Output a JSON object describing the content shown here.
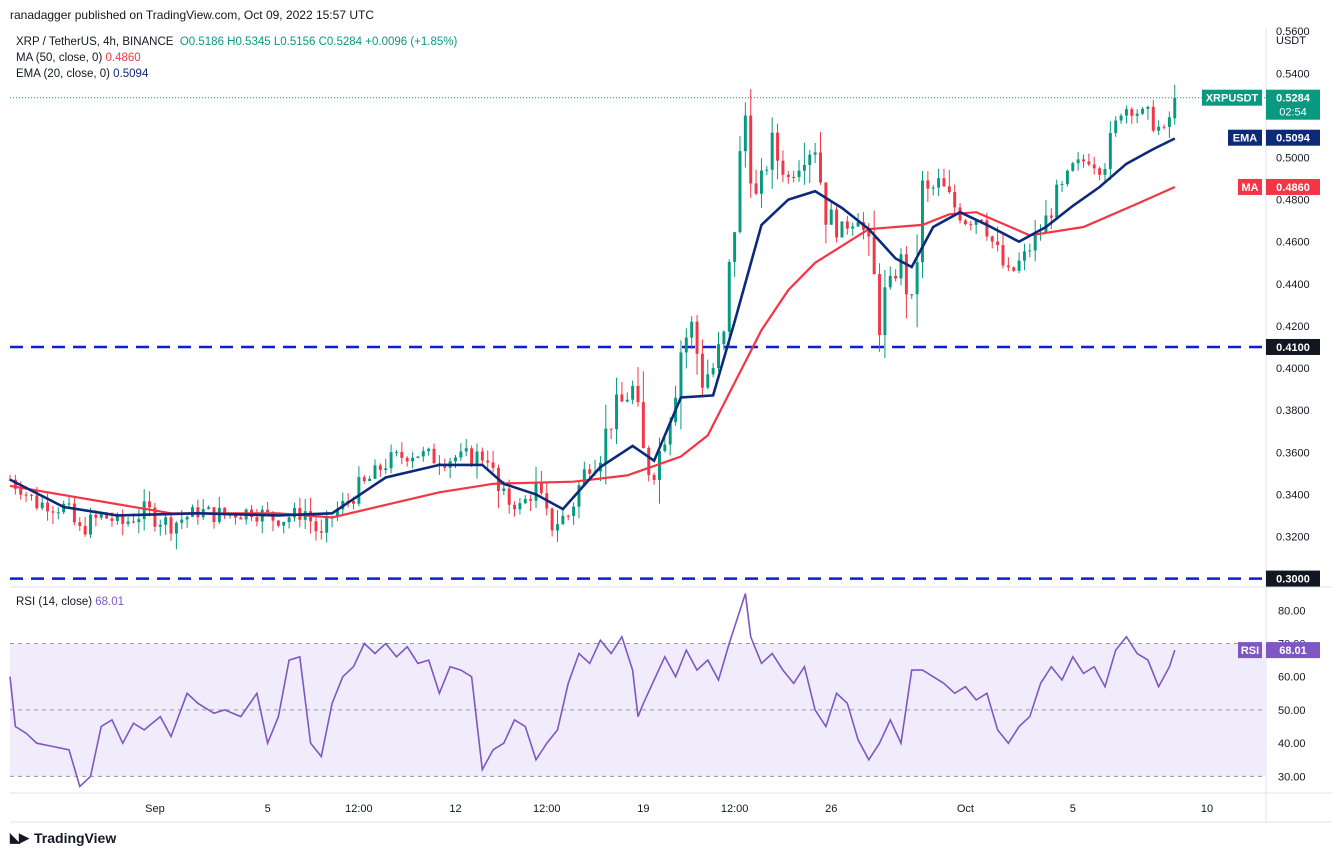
{
  "publisher": "ranadagger published on TradingView.com, Oct 09, 2022 15:57 UTC",
  "legend": {
    "symbol": "XRP / TetherUS, 4h, BINANCE",
    "ohlc": "O0.5186 H0.5345 L0.5156 C0.5284 +0.0096 (+1.85%)",
    "ma_label": "MA (50, close, 0)",
    "ma_value": "0.4860",
    "ema_label": "EMA (20, close, 0)",
    "ema_value": "0.5094",
    "rsi_label": "RSI (14, close)",
    "rsi_value": "68.01"
  },
  "brand": "TradingView",
  "colors": {
    "up": "#089981",
    "down": "#f23645",
    "ma": "#f23645",
    "ema": "#0d2a7a",
    "rsi": "#7e57c2",
    "level": "#0c1fcf",
    "rsiband": "#f1ecfb"
  },
  "chart_data": {
    "type": "candlestick",
    "title": "XRP / TetherUS, 4h, BINANCE",
    "currency": "USDT",
    "price_ylim": [
      0.296,
      0.5615
    ],
    "price_ticks": [
      "0.3200",
      "0.3400",
      "0.3600",
      "0.3800",
      "0.4000",
      "0.4200",
      "0.4400",
      "0.4600",
      "0.4800",
      "0.5000",
      "0.5400",
      "0.5600"
    ],
    "x_range": [
      0,
      234
    ],
    "x_ticks": [
      {
        "label": "Sep",
        "x": 27
      },
      {
        "label": "5",
        "x": 48
      },
      {
        "label": "12:00",
        "x": 65
      },
      {
        "label": "12",
        "x": 83
      },
      {
        "label": "12:00",
        "x": 100
      },
      {
        "label": "19",
        "x": 118
      },
      {
        "label": "12:00",
        "x": 135
      },
      {
        "label": "26",
        "x": 153
      },
      {
        "label": "Oct",
        "x": 178
      },
      {
        "label": "5",
        "x": 198
      },
      {
        "label": "10",
        "x": 223
      }
    ],
    "horizontal_levels": [
      0.41,
      0.3
    ],
    "level_labels": [
      "0.4100",
      "0.3000"
    ],
    "price_tags": {
      "symbol": "XRPUSDT",
      "price": "0.5284",
      "countdown": "02:54",
      "ema_name": "EMA",
      "ema": "0.5094",
      "ma_name": "MA",
      "ma": "0.4860"
    },
    "anchors": [
      [
        0,
        0.347
      ],
      [
        5,
        0.336
      ],
      [
        10,
        0.334
      ],
      [
        13,
        0.322
      ],
      [
        17,
        0.33
      ],
      [
        21,
        0.326
      ],
      [
        25,
        0.332
      ],
      [
        30,
        0.326
      ],
      [
        35,
        0.332
      ],
      [
        40,
        0.33
      ],
      [
        45,
        0.332
      ],
      [
        50,
        0.328
      ],
      [
        55,
        0.332
      ],
      [
        58,
        0.319
      ],
      [
        60,
        0.33
      ],
      [
        65,
        0.342
      ],
      [
        70,
        0.355
      ],
      [
        75,
        0.36
      ],
      [
        80,
        0.357
      ],
      [
        85,
        0.358
      ],
      [
        89,
        0.358
      ],
      [
        91,
        0.34
      ],
      [
        95,
        0.334
      ],
      [
        98,
        0.343
      ],
      [
        100,
        0.325
      ],
      [
        104,
        0.33
      ],
      [
        107,
        0.35
      ],
      [
        110,
        0.362
      ],
      [
        113,
        0.38
      ],
      [
        116,
        0.39
      ],
      [
        118,
        0.356
      ],
      [
        120,
        0.35
      ],
      [
        122,
        0.37
      ],
      [
        125,
        0.41
      ],
      [
        127,
        0.42
      ],
      [
        129,
        0.395
      ],
      [
        131,
        0.4
      ],
      [
        133,
        0.415
      ],
      [
        135,
        0.47
      ],
      [
        137,
        0.52
      ],
      [
        139,
        0.48
      ],
      [
        142,
        0.505
      ],
      [
        145,
        0.49
      ],
      [
        148,
        0.505
      ],
      [
        150,
        0.505
      ],
      [
        152,
        0.475
      ],
      [
        155,
        0.465
      ],
      [
        158,
        0.475
      ],
      [
        160,
        0.455
      ],
      [
        162,
        0.425
      ],
      [
        164,
        0.44
      ],
      [
        166,
        0.45
      ],
      [
        168,
        0.43
      ],
      [
        170,
        0.48
      ],
      [
        173,
        0.488
      ],
      [
        175,
        0.48
      ],
      [
        178,
        0.47
      ],
      [
        181,
        0.473
      ],
      [
        183,
        0.46
      ],
      [
        186,
        0.443
      ],
      [
        189,
        0.453
      ],
      [
        192,
        0.465
      ],
      [
        195,
        0.48
      ],
      [
        198,
        0.495
      ],
      [
        201,
        0.5
      ],
      [
        203,
        0.495
      ],
      [
        205,
        0.505
      ],
      [
        207,
        0.525
      ],
      [
        210,
        0.522
      ],
      [
        213,
        0.518
      ],
      [
        215,
        0.51
      ],
      [
        217,
        0.528
      ]
    ],
    "ma_line": [
      [
        0,
        0.344
      ],
      [
        30,
        0.331
      ],
      [
        50,
        0.331
      ],
      [
        60,
        0.329
      ],
      [
        80,
        0.341
      ],
      [
        90,
        0.345
      ],
      [
        105,
        0.346
      ],
      [
        115,
        0.349
      ],
      [
        125,
        0.358
      ],
      [
        130,
        0.368
      ],
      [
        135,
        0.393
      ],
      [
        140,
        0.418
      ],
      [
        145,
        0.437
      ],
      [
        150,
        0.45
      ],
      [
        160,
        0.466
      ],
      [
        170,
        0.468
      ],
      [
        175,
        0.473
      ],
      [
        180,
        0.474
      ],
      [
        190,
        0.463
      ],
      [
        200,
        0.467
      ],
      [
        210,
        0.478
      ],
      [
        217,
        0.486
      ]
    ],
    "ema_line": [
      [
        0,
        0.347
      ],
      [
        10,
        0.334
      ],
      [
        20,
        0.33
      ],
      [
        35,
        0.331
      ],
      [
        50,
        0.33
      ],
      [
        60,
        0.331
      ],
      [
        70,
        0.348
      ],
      [
        80,
        0.354
      ],
      [
        88,
        0.354
      ],
      [
        92,
        0.345
      ],
      [
        98,
        0.34
      ],
      [
        103,
        0.333
      ],
      [
        110,
        0.353
      ],
      [
        116,
        0.363
      ],
      [
        120,
        0.356
      ],
      [
        125,
        0.386
      ],
      [
        131,
        0.387
      ],
      [
        135,
        0.422
      ],
      [
        140,
        0.468
      ],
      [
        145,
        0.48
      ],
      [
        150,
        0.484
      ],
      [
        155,
        0.476
      ],
      [
        160,
        0.466
      ],
      [
        165,
        0.452
      ],
      [
        168,
        0.448
      ],
      [
        172,
        0.467
      ],
      [
        177,
        0.474
      ],
      [
        182,
        0.468
      ],
      [
        188,
        0.46
      ],
      [
        193,
        0.467
      ],
      [
        198,
        0.477
      ],
      [
        203,
        0.486
      ],
      [
        208,
        0.497
      ],
      [
        213,
        0.504
      ],
      [
        217,
        0.509
      ]
    ],
    "rsi": {
      "ylim": [
        25,
        87
      ],
      "ticks": [
        "30.00",
        "40.00",
        "50.00",
        "60.00",
        "70.00",
        "80.00"
      ],
      "band": [
        30,
        70
      ],
      "mid": 50,
      "anchors": [
        [
          0,
          60
        ],
        [
          1,
          45
        ],
        [
          3,
          43
        ],
        [
          5,
          40
        ],
        [
          8,
          39
        ],
        [
          11,
          38
        ],
        [
          13,
          27
        ],
        [
          15,
          30
        ],
        [
          17,
          45
        ],
        [
          19,
          47
        ],
        [
          21,
          40
        ],
        [
          23,
          46
        ],
        [
          25,
          44
        ],
        [
          28,
          48
        ],
        [
          30,
          42
        ],
        [
          33,
          55
        ],
        [
          35,
          52
        ],
        [
          38,
          49
        ],
        [
          40,
          50
        ],
        [
          43,
          48
        ],
        [
          46,
          55
        ],
        [
          48,
          40
        ],
        [
          50,
          48
        ],
        [
          52,
          65
        ],
        [
          54,
          66
        ],
        [
          56,
          40
        ],
        [
          58,
          36
        ],
        [
          60,
          52
        ],
        [
          62,
          60
        ],
        [
          64,
          63
        ],
        [
          66,
          70
        ],
        [
          68,
          67
        ],
        [
          70,
          70
        ],
        [
          72,
          66
        ],
        [
          74,
          69
        ],
        [
          76,
          64
        ],
        [
          78,
          65
        ],
        [
          80,
          55
        ],
        [
          82,
          63
        ],
        [
          84,
          62
        ],
        [
          86,
          60
        ],
        [
          88,
          32
        ],
        [
          90,
          38
        ],
        [
          92,
          40
        ],
        [
          94,
          47
        ],
        [
          96,
          45
        ],
        [
          98,
          35
        ],
        [
          100,
          40
        ],
        [
          102,
          44
        ],
        [
          104,
          58
        ],
        [
          106,
          67
        ],
        [
          108,
          64
        ],
        [
          110,
          71
        ],
        [
          112,
          67
        ],
        [
          114,
          72
        ],
        [
          116,
          62
        ],
        [
          117,
          48
        ],
        [
          118,
          52
        ],
        [
          120,
          59
        ],
        [
          122,
          66
        ],
        [
          124,
          60
        ],
        [
          126,
          68
        ],
        [
          128,
          62
        ],
        [
          130,
          65
        ],
        [
          132,
          59
        ],
        [
          134,
          70
        ],
        [
          136,
          80
        ],
        [
          137,
          85
        ],
        [
          138,
          72
        ],
        [
          140,
          64
        ],
        [
          142,
          67
        ],
        [
          144,
          62
        ],
        [
          146,
          58
        ],
        [
          148,
          63
        ],
        [
          150,
          50
        ],
        [
          152,
          45
        ],
        [
          154,
          55
        ],
        [
          156,
          52
        ],
        [
          158,
          41
        ],
        [
          160,
          35
        ],
        [
          162,
          40
        ],
        [
          164,
          47
        ],
        [
          166,
          40
        ],
        [
          168,
          62
        ],
        [
          170,
          62
        ],
        [
          172,
          60
        ],
        [
          174,
          58
        ],
        [
          176,
          55
        ],
        [
          178,
          57
        ],
        [
          180,
          53
        ],
        [
          182,
          55
        ],
        [
          184,
          44
        ],
        [
          186,
          40
        ],
        [
          188,
          45
        ],
        [
          190,
          48
        ],
        [
          192,
          58
        ],
        [
          194,
          63
        ],
        [
          196,
          59
        ],
        [
          198,
          66
        ],
        [
          200,
          61
        ],
        [
          202,
          63
        ],
        [
          204,
          57
        ],
        [
          206,
          68
        ],
        [
          208,
          72
        ],
        [
          210,
          67
        ],
        [
          212,
          65
        ],
        [
          214,
          57
        ],
        [
          216,
          63
        ],
        [
          217,
          68
        ]
      ],
      "current": "68.01"
    }
  }
}
